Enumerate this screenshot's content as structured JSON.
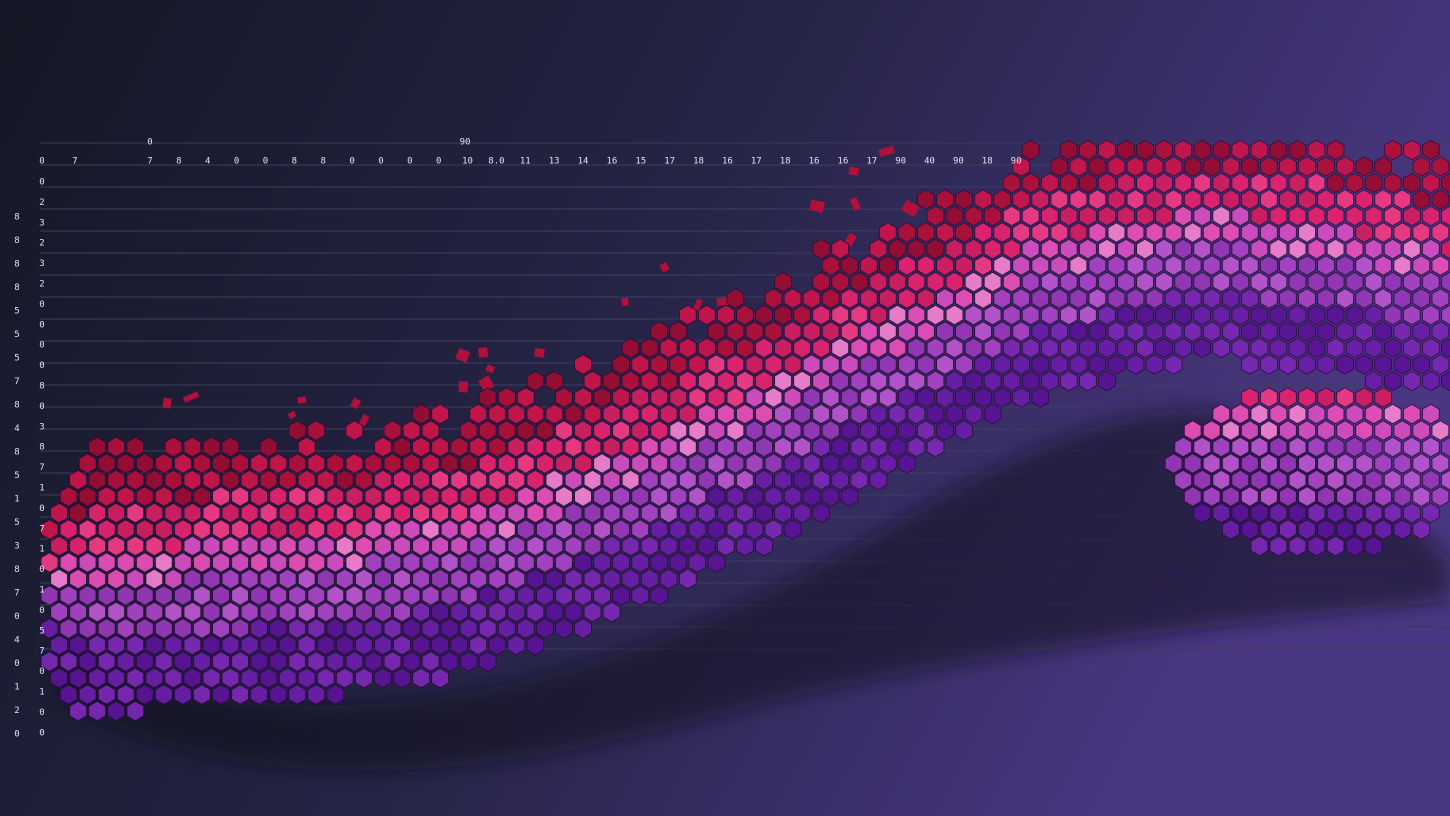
{
  "top_axis": {
    "lead_labels": [
      "0",
      "7"
    ],
    "labels": [
      "7",
      "8",
      "4",
      "0",
      "0",
      "8",
      "8",
      "0",
      "0",
      "0",
      "0",
      "10",
      "8.0",
      "11",
      "13",
      "14",
      "16",
      "15",
      "17",
      "18",
      "16",
      "17",
      "18",
      "16",
      "16",
      "17",
      "90",
      "40",
      "90",
      "18",
      "90"
    ]
  },
  "header_labels": [
    "0",
    "90"
  ],
  "left_column_outer": [
    "8",
    "8",
    "8",
    "8",
    "5",
    "5",
    "5",
    "7",
    "8",
    "4",
    "8",
    "5",
    "1",
    "5",
    "3",
    "8",
    "7",
    "0",
    "4",
    "0",
    "1",
    "2",
    "0"
  ],
  "left_column_inner": [
    "0",
    "2",
    "3",
    "2",
    "3",
    "2",
    "0",
    "0",
    "0",
    "0",
    "8",
    "0",
    "3",
    "8",
    "7",
    "1",
    "0",
    "7",
    "1",
    "0",
    "1",
    "0",
    "5",
    "7",
    "0",
    "1",
    "0",
    "0"
  ]
}
